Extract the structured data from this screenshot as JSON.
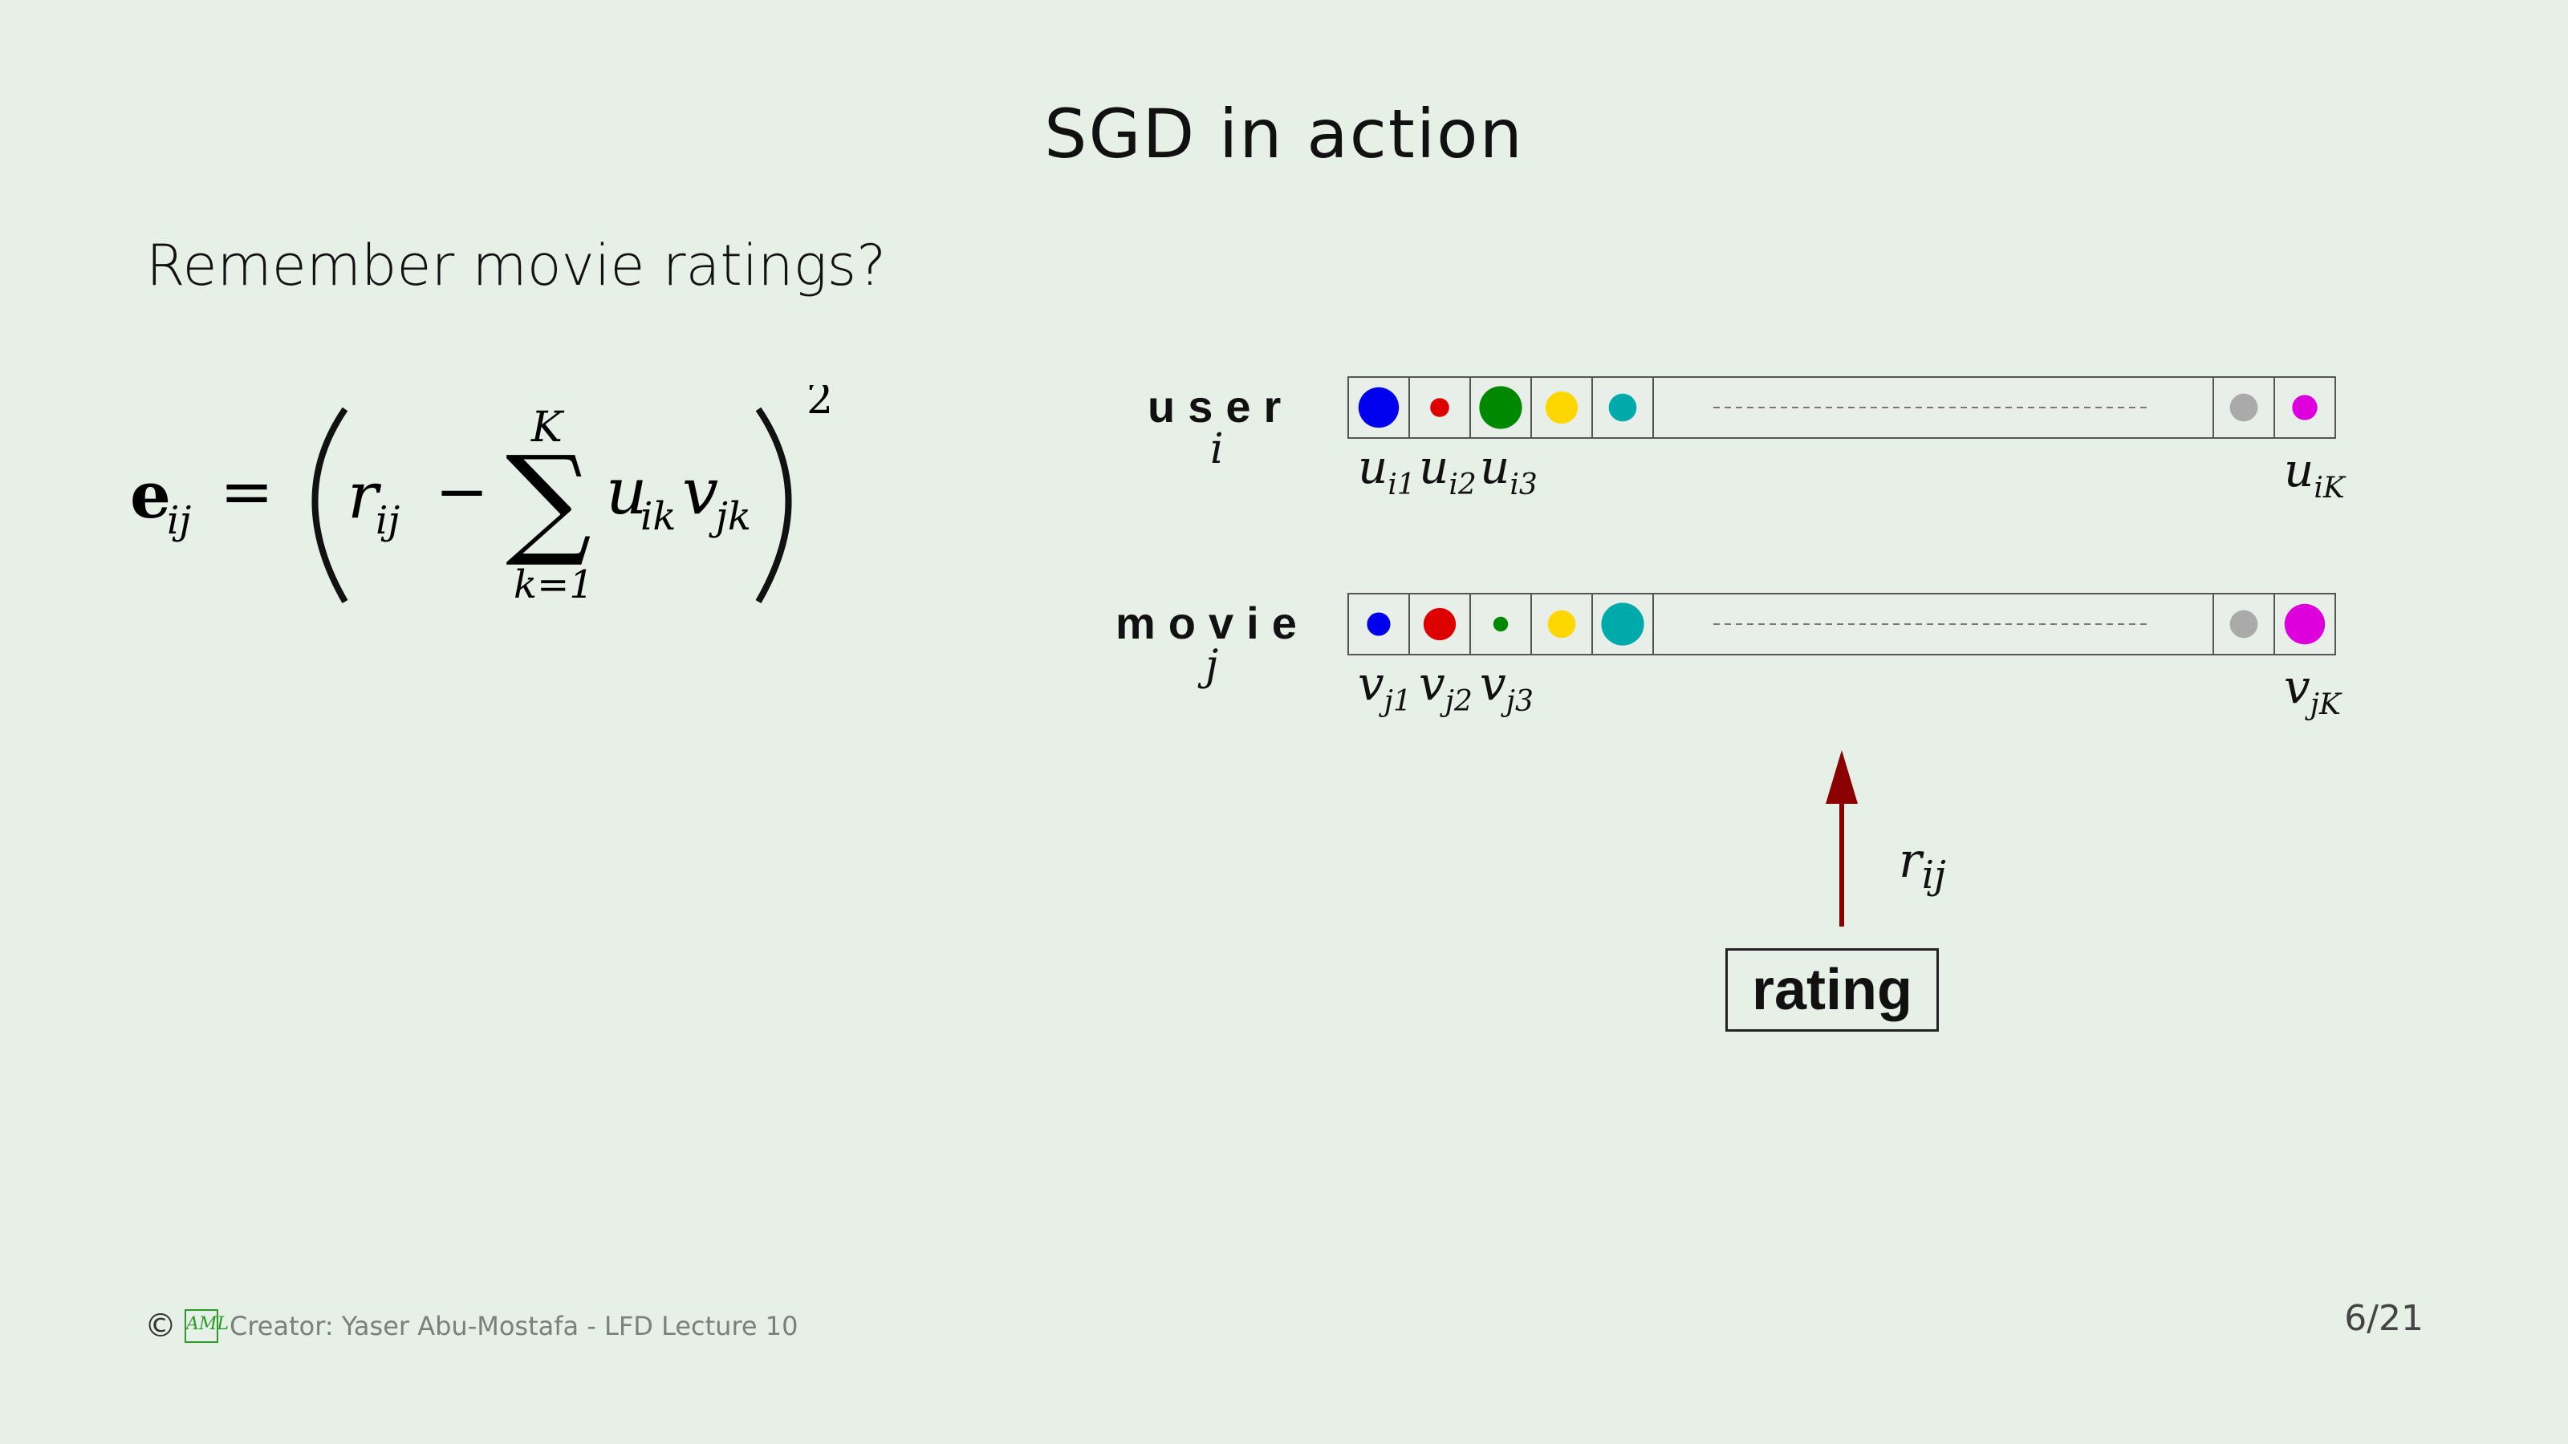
{
  "title": "SGD in action",
  "subtitle": "Remember movie ratings?",
  "formula": {
    "lhs_e": "e",
    "lhs_sub": "ij",
    "equals": "=",
    "r": "r",
    "r_sub": "ij",
    "minus": "−",
    "sum_symbol": "∑",
    "sum_upper": "K",
    "sum_lower": "k=1",
    "u": "u",
    "u_sub": "ik",
    "v": "v",
    "v_sub": "jk",
    "exponent": "2"
  },
  "user_row": {
    "label": "user",
    "index": "i",
    "factor_labels": [
      {
        "base": "u",
        "sub": "i1"
      },
      {
        "base": "u",
        "sub": "i2"
      },
      {
        "base": "u",
        "sub": "i3"
      }
    ],
    "last_label": {
      "base": "u",
      "sub": "iK"
    },
    "dots": [
      {
        "color": "#0000ee",
        "size": 0.9
      },
      {
        "color": "#dd0000",
        "size": 0.42
      },
      {
        "color": "#008800",
        "size": 0.95
      },
      {
        "color": "#ffd700",
        "size": 0.72
      },
      {
        "color": "#00aaaa",
        "size": 0.62
      }
    ],
    "last_dots": [
      {
        "color": "#aaaaaa",
        "size": 0.62
      },
      {
        "color": "#dd00dd",
        "size": 0.56
      }
    ]
  },
  "movie_row": {
    "label": "movie",
    "index": "j",
    "factor_labels": [
      {
        "base": "v",
        "sub": "j1"
      },
      {
        "base": "v",
        "sub": "j2"
      },
      {
        "base": "v",
        "sub": "j3"
      }
    ],
    "last_label": {
      "base": "v",
      "sub": "jK"
    },
    "dots": [
      {
        "color": "#0000ee",
        "size": 0.52
      },
      {
        "color": "#dd0000",
        "size": 0.72
      },
      {
        "color": "#008800",
        "size": 0.33
      },
      {
        "color": "#ffd700",
        "size": 0.62
      },
      {
        "color": "#00aaaa",
        "size": 0.95
      }
    ],
    "last_dots": [
      {
        "color": "#aaaaaa",
        "size": 0.62
      },
      {
        "color": "#dd00dd",
        "size": 0.9
      }
    ]
  },
  "arrow_color": "#8b0000",
  "rating_label": "r",
  "rating_sub": "ij",
  "rating_box": "rating",
  "footer": {
    "copyright": "©",
    "logo": "AML",
    "credit": "Creator: Yaser Abu-Mostafa - LFD Lecture 10"
  },
  "page_number": "6/21"
}
